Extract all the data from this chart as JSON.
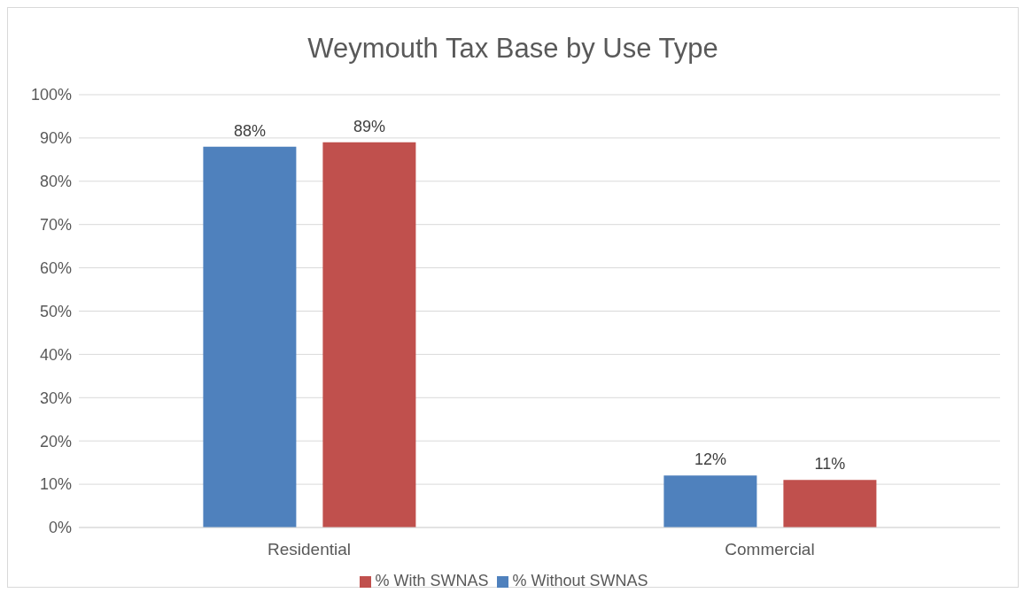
{
  "chart_data": {
    "type": "bar",
    "title": "Weymouth Tax Base by Use Type",
    "categories": [
      "Residential",
      "Commercial"
    ],
    "series": [
      {
        "name": "% Without SWNAS",
        "color": "#4f81bd",
        "values": [
          88,
          12
        ],
        "value_labels": [
          "88%",
          "12%"
        ]
      },
      {
        "name": "% With SWNAS",
        "color": "#c0504d",
        "values": [
          89,
          11
        ],
        "value_labels": [
          "89%",
          "11%"
        ]
      }
    ],
    "ylim": [
      0,
      100
    ],
    "yticks": [
      {
        "value": 0,
        "label": "0%"
      },
      {
        "value": 10,
        "label": "10%"
      },
      {
        "value": 20,
        "label": "20%"
      },
      {
        "value": 30,
        "label": "30%"
      },
      {
        "value": 40,
        "label": "40%"
      },
      {
        "value": 50,
        "label": "50%"
      },
      {
        "value": 60,
        "label": "60%"
      },
      {
        "value": 70,
        "label": "70%"
      },
      {
        "value": 80,
        "label": "80%"
      },
      {
        "value": 90,
        "label": "90%"
      },
      {
        "value": 100,
        "label": "100%"
      }
    ],
    "grid": "y",
    "legend": "bottom"
  }
}
